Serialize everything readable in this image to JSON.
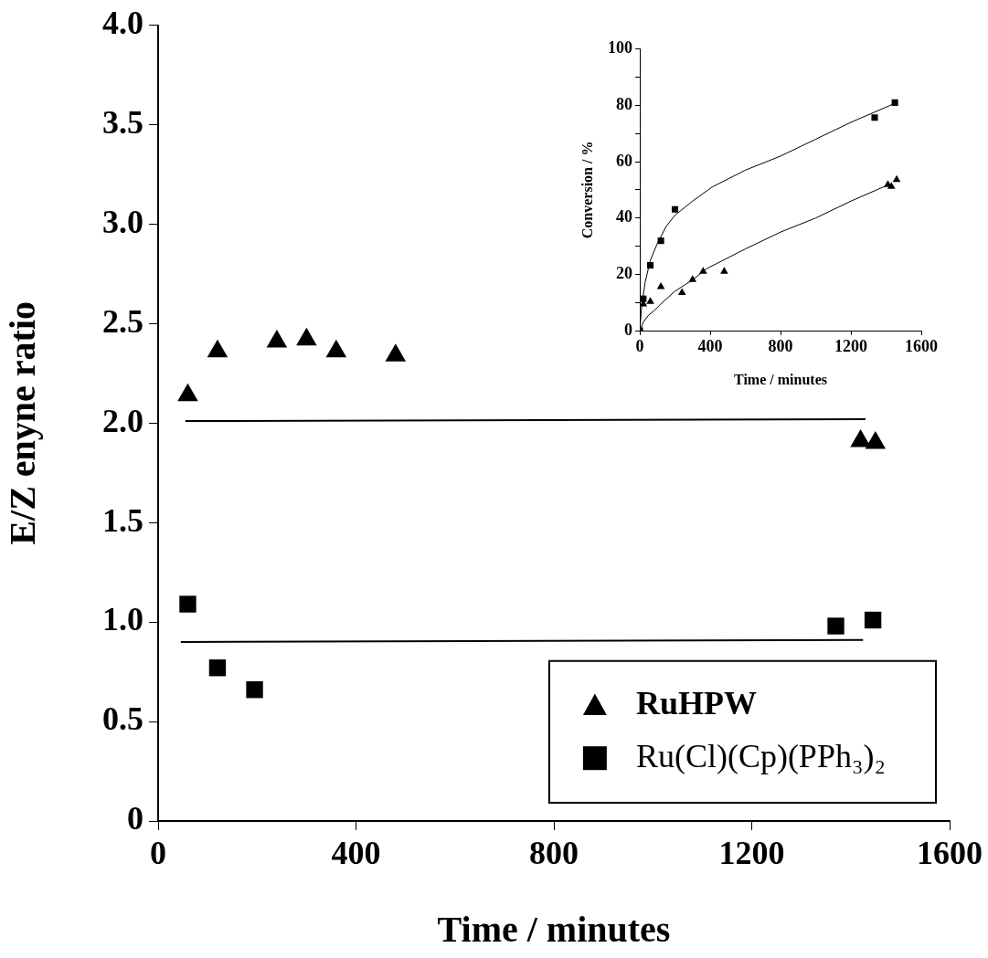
{
  "chart_data": [
    {
      "type": "scatter",
      "xlabel": "Time / minutes",
      "ylabel": "E/Z enyne ratio",
      "xlim": [
        0,
        1600
      ],
      "xticks": [
        0,
        400,
        800,
        1200,
        1600
      ],
      "ylim": [
        0,
        4
      ],
      "yticks": [
        0,
        0.5,
        {
          "value": 1,
          "label": "1.0"
        },
        1.5,
        {
          "value": 2,
          "label": "2.0"
        },
        2.5,
        {
          "value": 3,
          "label": "3.0"
        },
        3.5,
        {
          "value": 4,
          "label": "4.0"
        }
      ],
      "grid": false,
      "legend": "bottom right",
      "series": [
        {
          "name": "RuHPW",
          "color": "#000000",
          "marker": "triangle",
          "x": [
            60,
            120,
            240,
            300,
            360,
            480,
            1420,
            1450
          ],
          "values": [
            2.14,
            2.36,
            2.41,
            2.42,
            2.36,
            2.34,
            1.91,
            1.9
          ]
        },
        {
          "name": "Ru(Cl)(Cp)(PPh₃)₂",
          "color": "#000000",
          "marker": "square",
          "x": [
            60,
            120,
            195,
            1370,
            1445
          ],
          "values": [
            1.09,
            0.77,
            0.66,
            0.98,
            1.01
          ]
        },
        {
          "type": "line",
          "color": "#000000",
          "marker": "none",
          "line_style": "solid",
          "x": [
            55,
            1430
          ],
          "values": [
            2.01,
            2.02
          ]
        },
        {
          "type": "line",
          "color": "#000000",
          "marker": "none",
          "line_style": "solid",
          "x": [
            46,
            1425
          ],
          "values": [
            0.9,
            0.91
          ]
        }
      ]
    },
    {
      "type": "scatter",
      "xlabel": "Time / minutes",
      "ylabel": "Conversion / %",
      "xlim": [
        0,
        1600
      ],
      "xticks": [
        0,
        400,
        800,
        1200,
        1600
      ],
      "ylim": [
        0,
        100
      ],
      "yticks": [
        0,
        {
          "value": 10,
          "label": null
        },
        20,
        {
          "value": 30,
          "label": null
        },
        40,
        {
          "value": 50,
          "label": null
        },
        60,
        {
          "value": 70,
          "label": null
        },
        80,
        {
          "value": 90,
          "label": null
        },
        100
      ],
      "grid": false,
      "series": [
        {
          "color": "#000000",
          "marker": "square",
          "x": [
            0,
            20,
            60,
            120,
            200,
            1335,
            1450
          ],
          "values": [
            0,
            11.3,
            23.2,
            31.9,
            43.1,
            75.7,
            81
          ]
        },
        {
          "color": "#000000",
          "marker": "triangle",
          "x": [
            20,
            60,
            120,
            240,
            300,
            360,
            480,
            1410,
            1430,
            1460
          ],
          "values": [
            9.4,
            10.3,
            15.6,
            13.5,
            18.1,
            21,
            21,
            51.8,
            51.2,
            53.6
          ]
        },
        {
          "type": "line",
          "color": "#000000",
          "marker": "none",
          "line_style": "solid",
          "x": [
            0,
            10,
            30,
            60,
            100,
            150,
            200,
            300,
            411,
            600,
            800,
            1000,
            1200,
            1460
          ],
          "values": [
            0,
            8,
            17,
            25,
            31,
            37,
            41,
            46,
            51,
            57,
            62,
            68,
            74,
            81
          ]
        },
        {
          "type": "line",
          "color": "#000000",
          "marker": "none",
          "line_style": "solid",
          "x": [
            0,
            20,
            50,
            80,
            120,
            200,
            300,
            380,
            600,
            800,
            1000,
            1200,
            1420
          ],
          "values": [
            0,
            3,
            5.5,
            7,
            9.5,
            14,
            18,
            22,
            29,
            35,
            40,
            46,
            52
          ]
        }
      ]
    }
  ]
}
